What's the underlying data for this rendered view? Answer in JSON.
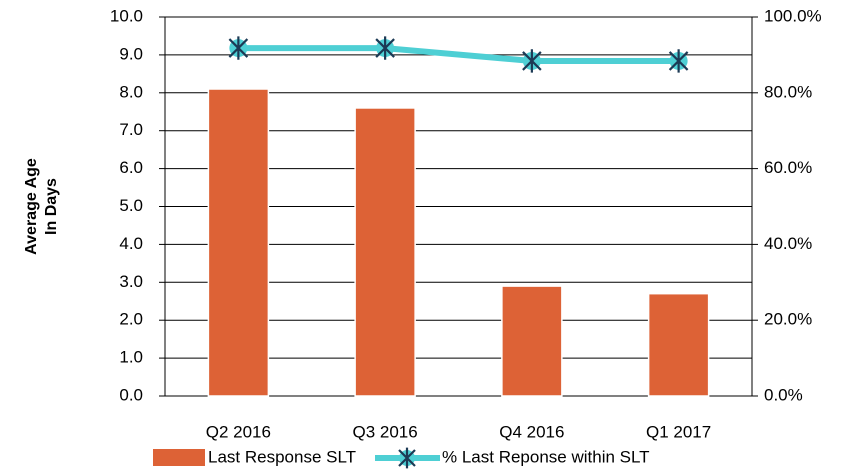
{
  "chart_data": {
    "type": "bar_line",
    "ylabel": [
      "Average Age",
      "In Days"
    ],
    "categories": [
      "Q2 2016",
      "Q3 2016",
      "Q4 2016",
      "Q1 2017"
    ],
    "series": [
      {
        "name": "Last Response SLT",
        "color": "#dd6236",
        "values": [
          8.1,
          7.6,
          2.9,
          2.7
        ]
      },
      {
        "name": "% Last Reponse within SLT",
        "color": "#4ecfd4",
        "marker_color": "#1c3a55",
        "axis": "y2",
        "values": [
          91.8,
          91.8,
          88.4,
          88.4
        ]
      }
    ],
    "ylim": [
      0,
      10
    ],
    "yticks": [
      {
        "value": 0,
        "label": "0.0"
      },
      {
        "value": 1,
        "label": "1.0"
      },
      {
        "value": 2,
        "label": "2.0"
      },
      {
        "value": 3,
        "label": "3.0"
      },
      {
        "value": 4,
        "label": "4.0"
      },
      {
        "value": 5,
        "label": "5.0"
      },
      {
        "value": 6,
        "label": "6.0"
      },
      {
        "value": 7,
        "label": "7.0"
      },
      {
        "value": 8,
        "label": "8.0"
      },
      {
        "value": 9,
        "label": "9.0"
      },
      {
        "value": 10,
        "label": "10.0"
      }
    ],
    "y2lim": [
      0,
      100
    ],
    "y2ticks": [
      {
        "value": 0,
        "label": "0.0%"
      },
      {
        "value": 20,
        "label": "20.0%"
      },
      {
        "value": 40,
        "label": "40.0%"
      },
      {
        "value": 60,
        "label": "60.0%"
      },
      {
        "value": 80,
        "label": "80.0%"
      },
      {
        "value": 100,
        "label": "100.0%"
      }
    ],
    "grid": true,
    "legend": "bottom"
  }
}
